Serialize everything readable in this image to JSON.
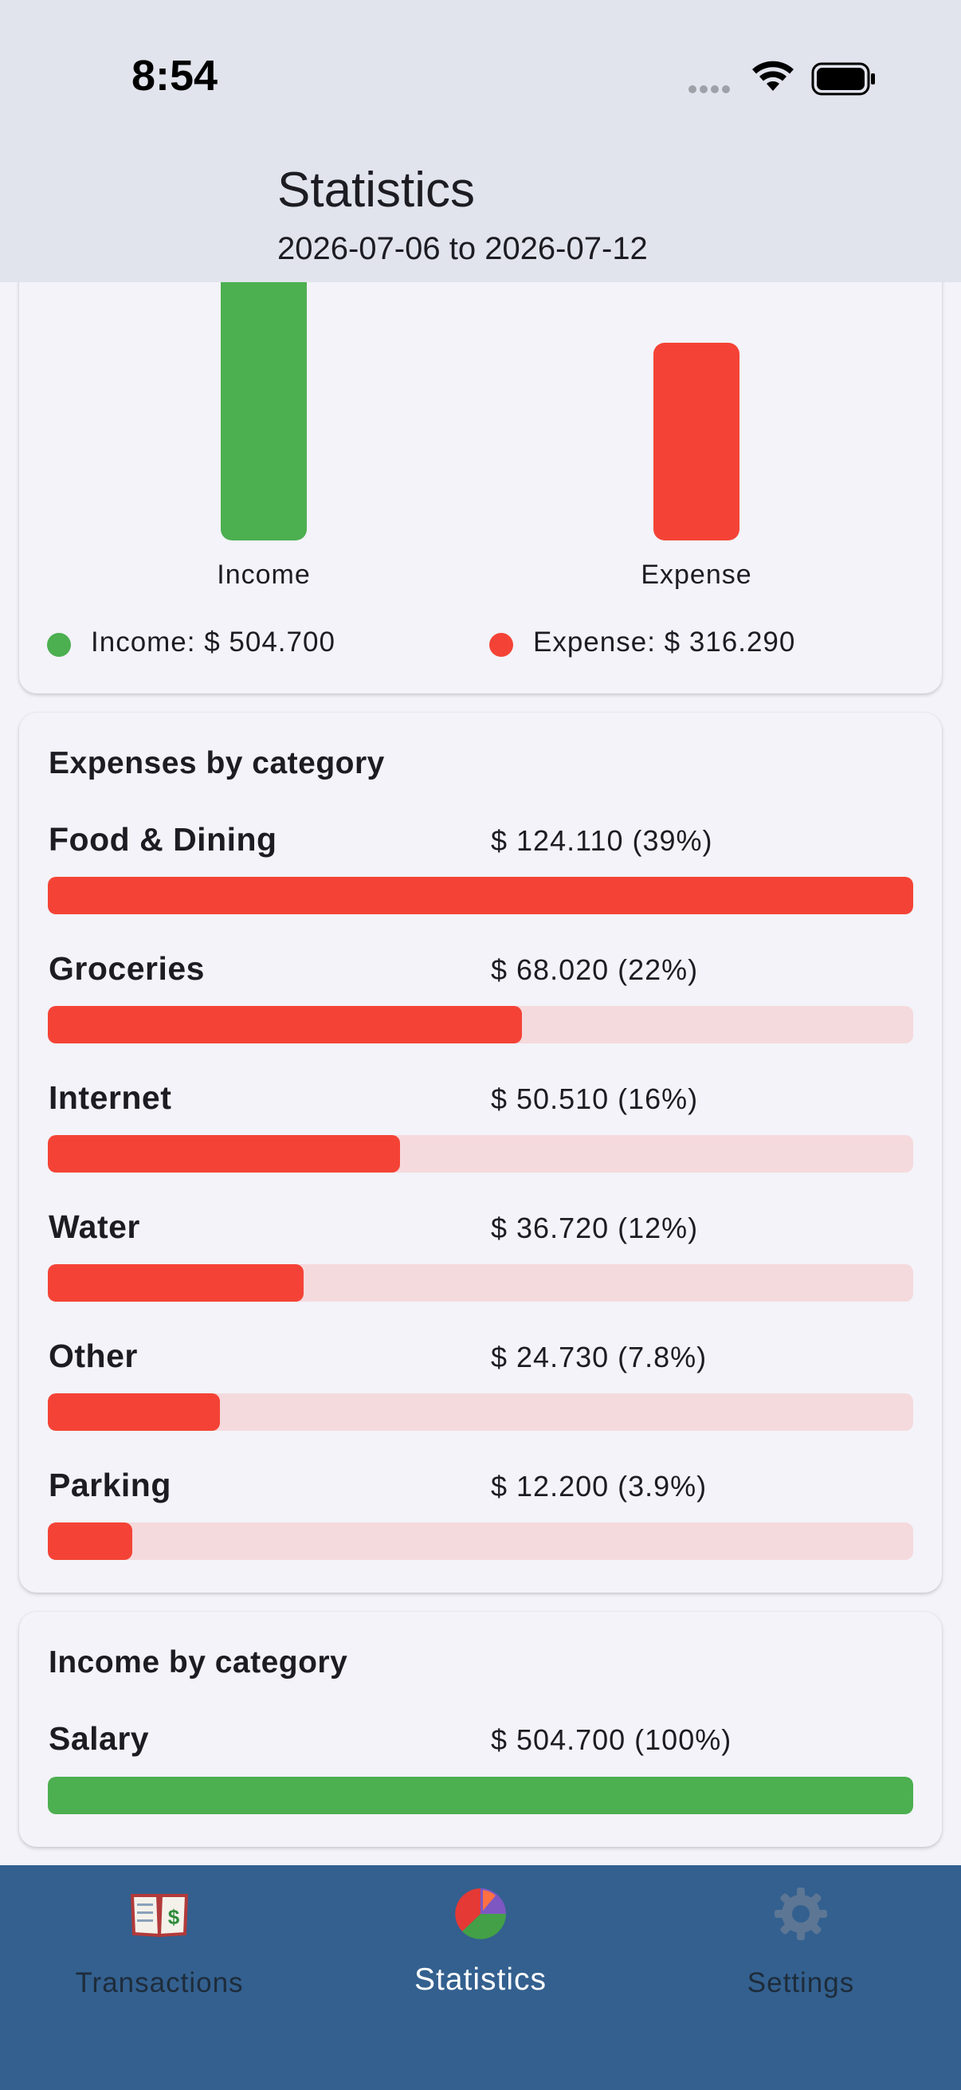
{
  "status_bar": {
    "time": "8:54"
  },
  "header": {
    "title": "Statistics",
    "subtitle": "2026-07-06 to 2026-07-12"
  },
  "summary": {
    "income_label": "Income",
    "expense_label": "Expense",
    "income_legend": "Income: $ 504.700",
    "expense_legend": "Expense: $ 316.290",
    "income_value": 504.7,
    "expense_value": 316.29,
    "colors": {
      "income": "#4caf50",
      "expense": "#f44336"
    }
  },
  "expenses": {
    "title": "Expenses by category",
    "items": [
      {
        "name": "Food & Dining",
        "value_text": "$ 124.110 (39%)",
        "fraction": 1.0
      },
      {
        "name": "Groceries",
        "value_text": "$ 68.020 (22%)",
        "fraction": 0.548
      },
      {
        "name": "Internet",
        "value_text": "$ 50.510 (16%)",
        "fraction": 0.407
      },
      {
        "name": "Water",
        "value_text": "$ 36.720 (12%)",
        "fraction": 0.296
      },
      {
        "name": "Other",
        "value_text": "$ 24.730 (7.8%)",
        "fraction": 0.199
      },
      {
        "name": "Parking",
        "value_text": "$ 12.200 (3.9%)",
        "fraction": 0.098
      }
    ]
  },
  "income": {
    "title": "Income by category",
    "items": [
      {
        "name": "Salary",
        "value_text": "$ 504.700 (100%)",
        "fraction": 1.0
      }
    ]
  },
  "nav": {
    "items": [
      {
        "label": "Transactions",
        "icon": "ledger-dollar-icon",
        "active": false
      },
      {
        "label": "Statistics",
        "icon": "pie-chart-icon",
        "active": true
      },
      {
        "label": "Settings",
        "icon": "gear-icon",
        "active": false
      }
    ]
  }
}
